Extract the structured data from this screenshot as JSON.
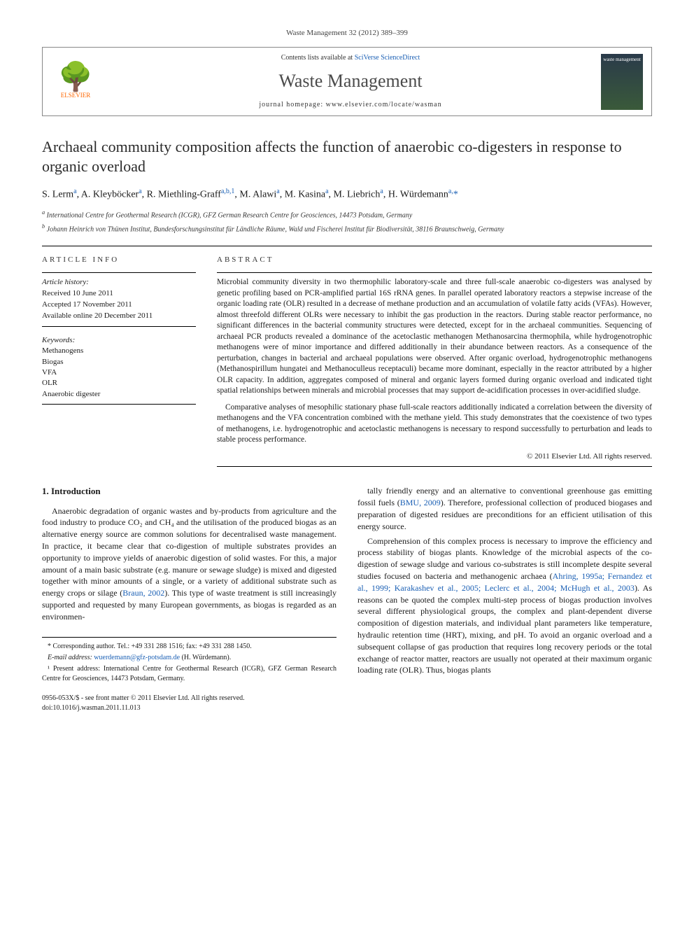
{
  "journal_ref": "Waste Management 32 (2012) 389–399",
  "header": {
    "contents_prefix": "Contents lists available at ",
    "contents_link": "SciVerse ScienceDirect",
    "journal_name": "Waste Management",
    "homepage_prefix": "journal homepage: ",
    "homepage_url": "www.elsevier.com/locate/wasman",
    "publisher_label": "ELSEVIER",
    "cover_label": "waste management"
  },
  "title": "Archaeal community composition affects the function of anaerobic co-digesters in response to organic overload",
  "authors_html": "S. Lerm<sup>a</sup>, A. Kleyböcker<sup>a</sup>, R. Miethling-Graff<sup>a,b,1</sup>, M. Alawi<sup>a</sup>, M. Kasina<sup>a</sup>, M. Liebrich<sup>a</sup>, H. Würdemann<sup>a,</sup><span class='ast'>*</span>",
  "affiliations": [
    "a International Centre for Geothermal Research (ICGR), GFZ German Research Centre for Geosciences, 14473 Potsdam, Germany",
    "b Johann Heinrich von Thünen Institut, Bundesforschungsinstitut für Ländliche Räume, Wald und Fischerei Institut für Biodiversität, 38116 Braunschweig, Germany"
  ],
  "article_info": {
    "heading": "ARTICLE INFO",
    "history_label": "Article history:",
    "history": [
      "Received 10 June 2011",
      "Accepted 17 November 2011",
      "Available online 20 December 2011"
    ],
    "keywords_label": "Keywords:",
    "keywords": [
      "Methanogens",
      "Biogas",
      "VFA",
      "OLR",
      "Anaerobic digester"
    ]
  },
  "abstract": {
    "heading": "ABSTRACT",
    "paragraphs": [
      "Microbial community diversity in two thermophilic laboratory-scale and three full-scale anaerobic co-digesters was analysed by genetic profiling based on PCR-amplified partial 16S rRNA genes. In parallel operated laboratory reactors a stepwise increase of the organic loading rate (OLR) resulted in a decrease of methane production and an accumulation of volatile fatty acids (VFAs). However, almost threefold different OLRs were necessary to inhibit the gas production in the reactors. During stable reactor performance, no significant differences in the bacterial community structures were detected, except for in the archaeal communities. Sequencing of archaeal PCR products revealed a dominance of the acetoclastic methanogen Methanosarcina thermophila, while hydrogenotrophic methanogens were of minor importance and differed additionally in their abundance between reactors. As a consequence of the perturbation, changes in bacterial and archaeal populations were observed. After organic overload, hydrogenotrophic methanogens (Methanospirillum hungatei and Methanoculleus receptaculi) became more dominant, especially in the reactor attributed by a higher OLR capacity. In addition, aggregates composed of mineral and organic layers formed during organic overload and indicated tight spatial relationships between minerals and microbial processes that may support de-acidification processes in over-acidified sludge.",
      "Comparative analyses of mesophilic stationary phase full-scale reactors additionally indicated a correlation between the diversity of methanogens and the VFA concentration combined with the methane yield. This study demonstrates that the coexistence of two types of methanogens, i.e. hydrogenotrophic and acetoclastic methanogens is necessary to respond successfully to perturbation and leads to stable process performance."
    ],
    "copyright": "© 2011 Elsevier Ltd. All rights reserved."
  },
  "body": {
    "section_heading": "1. Introduction",
    "left_paragraphs": [
      "Anaerobic degradation of organic wastes and by-products from agriculture and the food industry to produce CO₂ and CH₄ and the utilisation of the produced biogas as an alternative energy source are common solutions for decentralised waste management. In practice, it became clear that co-digestion of multiple substrates provides an opportunity to improve yields of anaerobic digestion of solid wastes. For this, a major amount of a main basic substrate (e.g. manure or sewage sludge) is mixed and digested together with minor amounts of a single, or a variety of additional substrate such as energy crops or silage (Braun, 2002). This type of waste treatment is still increasingly supported and requested by many European governments, as biogas is regarded as an environmen-"
    ],
    "right_paragraphs": [
      "tally friendly energy and an alternative to conventional greenhouse gas emitting fossil fuels (BMU, 2009). Therefore, professional collection of produced biogases and preparation of digested residues are preconditions for an efficient utilisation of this energy source.",
      "Comprehension of this complex process is necessary to improve the efficiency and process stability of biogas plants. Knowledge of the microbial aspects of the co-digestion of sewage sludge and various co-substrates is still incomplete despite several studies focused on bacteria and methanogenic archaea (Ahring, 1995a; Fernandez et al., 1999; Karakashev et al., 2005; Leclerc et al., 2004; McHugh et al., 2003). As reasons can be quoted the complex multi-step process of biogas production involves several different physiological groups, the complex and plant-dependent diverse composition of digestion materials, and individual plant parameters like temperature, hydraulic retention time (HRT), mixing, and pH. To avoid an organic overload and a subsequent collapse of gas production that requires long recovery periods or the total exchange of reactor matter, reactors are usually not operated at their maximum organic loading rate (OLR). Thus, biogas plants"
    ]
  },
  "footnotes": {
    "corr": "* Corresponding author. Tel.: +49 331 288 1516; fax: +49 331 288 1450.",
    "email_label": "E-mail address:",
    "email": "wuerdemann@gfz-potsdam.de",
    "email_name": "(H. Würdemann).",
    "present": "¹ Present address: International Centre for Geothermal Research (ICGR), GFZ German Research Centre for Geosciences, 14473 Potsdam, Germany."
  },
  "doi": {
    "line1": "0956-053X/$ - see front matter © 2011 Elsevier Ltd. All rights reserved.",
    "line2": "doi:10.1016/j.wasman.2011.11.013"
  },
  "colors": {
    "link": "#1a5fb4",
    "text": "#1a1a1a",
    "publisher": "#ff6600"
  }
}
